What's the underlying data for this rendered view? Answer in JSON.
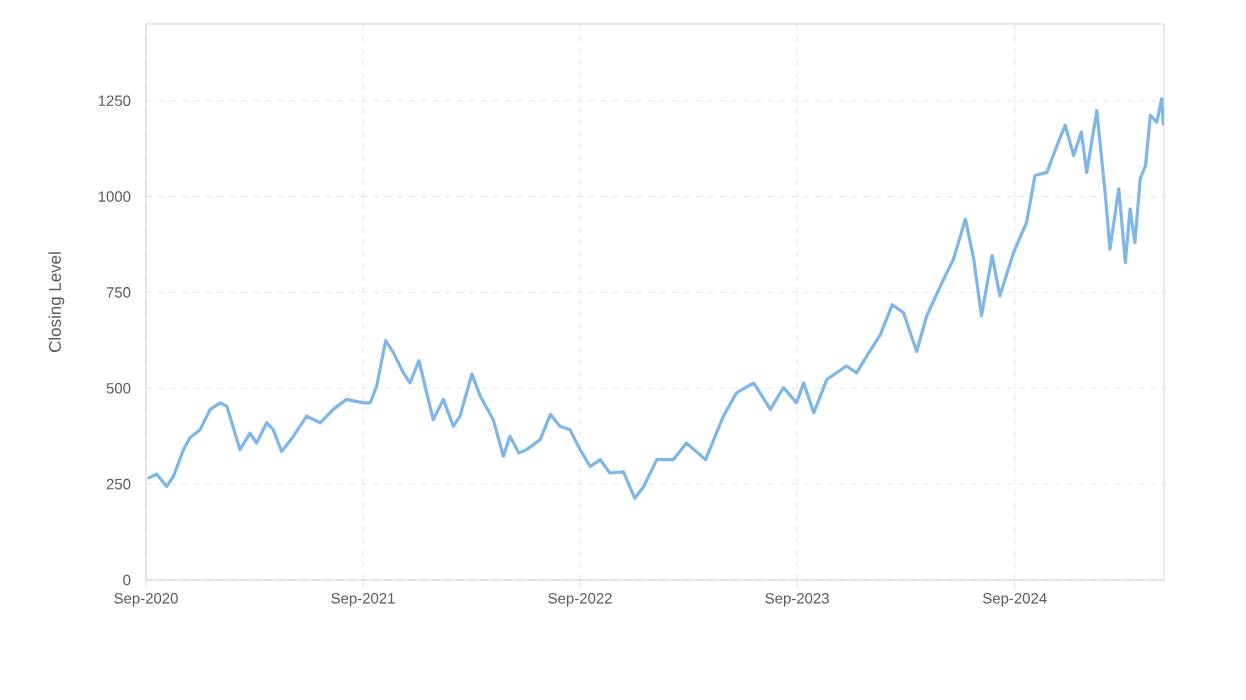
{
  "chart_data": {
    "type": "line",
    "ylabel": "Closing Level",
    "x": [
      "2020-09-04",
      "2020-09-19",
      "2020-10-06",
      "2020-10-17",
      "2020-11-03",
      "2020-11-14",
      "2020-12-01",
      "2020-12-18",
      "2021-01-04",
      "2021-01-15",
      "2021-02-06",
      "2021-02-23",
      "2021-03-06",
      "2021-03-23",
      "2021-04-03",
      "2021-04-17",
      "2021-05-07",
      "2021-05-29",
      "2021-06-21",
      "2021-07-13",
      "2021-08-04",
      "2021-09-02",
      "2021-09-13",
      "2021-09-24",
      "2021-10-09",
      "2021-10-22",
      "2021-11-08",
      "2021-11-19",
      "2021-12-04",
      "2021-12-28",
      "2022-01-14",
      "2022-01-31",
      "2022-02-11",
      "2022-03-03",
      "2022-03-17",
      "2022-04-08",
      "2022-04-25",
      "2022-05-06",
      "2022-05-21",
      "2022-06-03",
      "2022-06-26",
      "2022-07-13",
      "2022-07-29",
      "2022-08-15",
      "2022-09-01",
      "2022-09-18",
      "2022-10-05",
      "2022-10-21",
      "2022-11-13",
      "2022-12-02",
      "2022-12-17",
      "2023-01-08",
      "2023-02-05",
      "2023-02-27",
      "2023-03-31",
      "2023-04-30",
      "2023-05-22",
      "2023-06-20",
      "2023-07-18",
      "2023-08-09",
      "2023-08-31",
      "2023-09-12",
      "2023-09-29",
      "2023-10-21",
      "2023-11-23",
      "2023-12-10",
      "2023-12-27",
      "2024-01-19",
      "2024-02-08",
      "2024-02-27",
      "2024-03-20",
      "2024-04-06",
      "2024-04-29",
      "2024-05-21",
      "2024-06-10",
      "2024-06-24",
      "2024-07-07",
      "2024-07-25",
      "2024-08-07",
      "2024-08-30",
      "2024-09-21",
      "2024-10-05",
      "2024-10-25",
      "2024-11-11",
      "2024-11-25",
      "2024-12-09",
      "2024-12-22",
      "2024-12-31",
      "2025-01-17",
      "2025-02-01",
      "2025-02-08",
      "2025-02-23",
      "2025-03-06",
      "2025-03-14",
      "2025-03-22",
      "2025-03-31",
      "2025-04-09",
      "2025-04-17",
      "2025-04-28",
      "2025-05-06",
      "2025-05-09"
    ],
    "series": [
      {
        "color": "#7eb6e9",
        "values": [
          265,
          276,
          244,
          270,
          340,
          371,
          392,
          445,
          462,
          453,
          340,
          383,
          357,
          410,
          392,
          335,
          375,
          427,
          410,
          445,
          471,
          462,
          462,
          506,
          624,
          593,
          540,
          514,
          572,
          418,
          471,
          401,
          427,
          537,
          480,
          418,
          323,
          375,
          331,
          340,
          366,
          432,
          401,
          392,
          340,
          296,
          314,
          279,
          282,
          213,
          244,
          314,
          314,
          357,
          314,
          427,
          488,
          514,
          445,
          502,
          462,
          514,
          436,
          523,
          558,
          540,
          584,
          640,
          718,
          697,
          596,
          689,
          767,
          837,
          941,
          837,
          689,
          846,
          741,
          854,
          933,
          1055,
          1063,
          1133,
          1186,
          1107,
          1168,
          1063,
          1224,
          994,
          863,
          1020,
          828,
          968,
          880,
          1046,
          1081,
          1212,
          1194,
          1255,
          1186
        ]
      }
    ],
    "xlim": [
      "2020-09-01",
      "2025-05-10"
    ],
    "xticks": [
      {
        "value": "2020-09-01",
        "label": "Sep-2020"
      },
      {
        "value": "2021-09-01",
        "label": "Sep-2021"
      },
      {
        "value": "2022-09-01",
        "label": "Sep-2022"
      },
      {
        "value": "2023-09-01",
        "label": "Sep-2023"
      },
      {
        "value": "2024-09-01",
        "label": "Sep-2024"
      }
    ],
    "ylim": [
      0,
      1450
    ],
    "yticks": [
      0,
      250,
      500,
      750,
      1000,
      1250
    ],
    "grid": true,
    "legend": false,
    "marker": "none",
    "line_style": "solid"
  }
}
